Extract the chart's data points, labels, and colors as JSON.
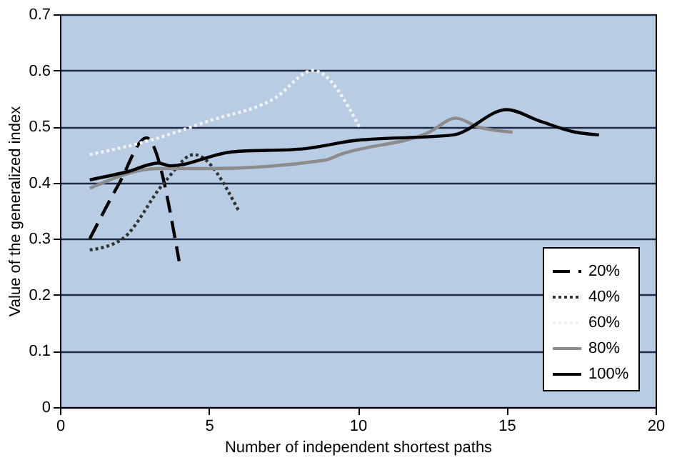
{
  "chart_data": {
    "type": "line",
    "xlabel": "Number of independent shortest paths",
    "ylabel": "Value of the generalized index",
    "xlim": [
      0,
      20
    ],
    "xticks": [
      0,
      5,
      10,
      15,
      20
    ],
    "ylim": [
      0,
      0.7
    ],
    "yticks": [
      0,
      0.1,
      0.2,
      0.3,
      0.4,
      0.5,
      0.6,
      0.7
    ],
    "grid": "y",
    "legend": "bottom right",
    "marker": "none",
    "series": [
      {
        "name": "20%",
        "color": "#000000",
        "line_style": "dashed",
        "x": [
          1,
          2,
          2.9,
          4
        ],
        "values": [
          0.3,
          0.4,
          0.48,
          0.26
        ]
      },
      {
        "name": "40%",
        "color": "#333333",
        "line_style": "dotted",
        "x": [
          1,
          2.1,
          3.5,
          4.5,
          6
        ],
        "values": [
          0.28,
          0.3,
          0.4,
          0.45,
          0.35
        ]
      },
      {
        "name": "60%",
        "color": "#f2f2f2",
        "line_style": "dotted",
        "x": [
          1,
          3,
          5,
          7.2,
          8.5,
          10.1
        ],
        "values": [
          0.45,
          0.475,
          0.51,
          0.55,
          0.6,
          0.495
        ]
      },
      {
        "name": "80%",
        "color": "#8c8c8c",
        "line_style": "solid",
        "x": [
          1,
          3.3,
          5,
          8.9,
          9.4,
          12.4,
          13.3,
          14,
          15.2
        ],
        "values": [
          0.39,
          0.425,
          0.425,
          0.44,
          0.45,
          0.49,
          0.515,
          0.5,
          0.49
        ]
      },
      {
        "name": "100%",
        "color": "#000000",
        "line_style": "solid",
        "x": [
          1,
          2.3,
          3.3,
          3.7,
          5.8,
          8.1,
          9.9,
          13.2,
          15,
          16.1,
          17.3,
          18.1
        ],
        "values": [
          0.405,
          0.42,
          0.435,
          0.43,
          0.455,
          0.46,
          0.475,
          0.485,
          0.53,
          0.51,
          0.49,
          0.485
        ]
      }
    ]
  }
}
